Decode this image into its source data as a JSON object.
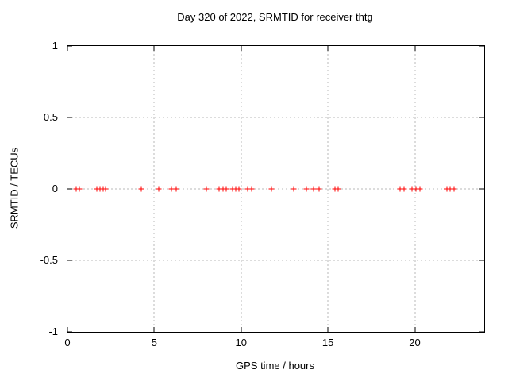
{
  "chart_data": {
    "type": "scatter",
    "title": "Day 320 of 2022, SRMTID for receiver thtg",
    "xlabel": "GPS time / hours",
    "ylabel": "SRMTID / TECUs",
    "xlim": [
      0,
      24
    ],
    "ylim": [
      -1,
      1
    ],
    "x_tick_values": [
      0,
      5,
      10,
      15,
      20
    ],
    "x_tick_labels": [
      "0",
      "5",
      "10",
      "15",
      "20"
    ],
    "y_tick_values": [
      1,
      0.5,
      0,
      -0.5,
      -1
    ],
    "y_tick_labels": [
      "1",
      "0.5",
      "0",
      "-0.5",
      "-1"
    ],
    "grid": true,
    "legend": "none",
    "marker": "plus",
    "marker_color": "#ff0000",
    "grid_color": "#b8b8b8",
    "border_color": "#000000",
    "series": [
      {
        "name": "SRMTID",
        "x": [
          0.5,
          0.68,
          1.7,
          1.88,
          2.04,
          2.2,
          4.23,
          5.25,
          6.01,
          6.24,
          7.99,
          8.75,
          8.94,
          9.13,
          9.5,
          9.67,
          9.86,
          10.37,
          10.59,
          11.74,
          13.05,
          13.77,
          14.18,
          14.5,
          15.39,
          15.6,
          19.16,
          19.39,
          19.86,
          20.08,
          20.29,
          21.84,
          22.05,
          22.27
        ],
        "y": [
          0,
          0,
          0,
          0,
          0,
          0,
          0,
          0,
          0,
          0,
          0,
          0,
          0,
          0,
          0,
          0,
          0,
          0,
          0,
          0,
          0,
          0,
          0,
          0,
          0,
          0,
          0,
          0,
          0,
          0,
          0,
          0,
          0,
          0
        ]
      }
    ]
  }
}
